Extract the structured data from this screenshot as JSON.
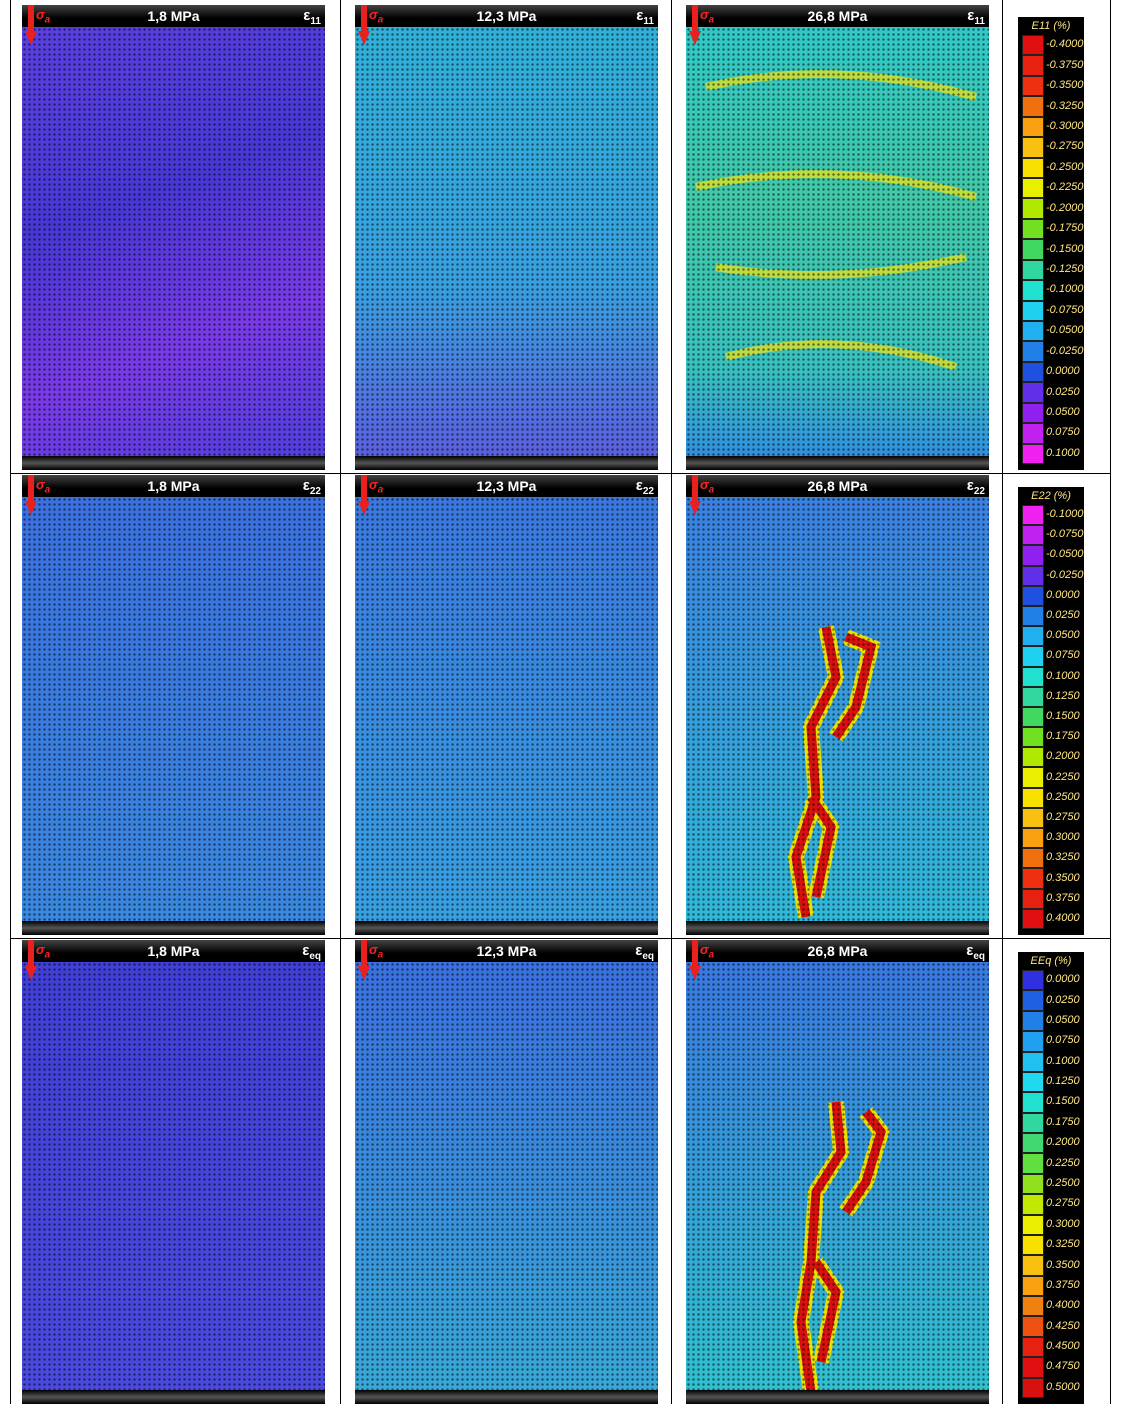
{
  "load_symbol": {
    "symbol": "σ",
    "subscript": "a"
  },
  "rows": [
    {
      "strain": {
        "symbol": "ε",
        "subscript": "11"
      },
      "panels": [
        {
          "stress": "1,8 MPa"
        },
        {
          "stress": "12,3 MPa"
        },
        {
          "stress": "26,8 MPa"
        }
      ],
      "colorbar": {
        "title": "E11 (%)",
        "labels": [
          "-0.4000",
          "-0.3750",
          "-0.3500",
          "-0.3250",
          "-0.3000",
          "-0.2750",
          "-0.2500",
          "-0.2250",
          "-0.2000",
          "-0.1750",
          "-0.1500",
          "-0.1250",
          "-0.1000",
          "-0.0750",
          "-0.0500",
          "-0.0250",
          "0.0000",
          "0.0250",
          "0.0500",
          "0.0750",
          "0.1000"
        ],
        "colors": [
          "#e01010",
          "#e82010",
          "#ee3010",
          "#f07010",
          "#f8a010",
          "#f8c010",
          "#f8e000",
          "#e8f000",
          "#b0e800",
          "#70e020",
          "#40d860",
          "#30d8a0",
          "#20e0d0",
          "#20d0f0",
          "#20b0f0",
          "#2080e8",
          "#2050e0",
          "#6030e8",
          "#9020f0",
          "#c020f0",
          "#f020f0"
        ]
      }
    },
    {
      "strain": {
        "symbol": "ε",
        "subscript": "22"
      },
      "panels": [
        {
          "stress": "1,8 MPa"
        },
        {
          "stress": "12,3 MPa"
        },
        {
          "stress": "26,8 MPa"
        }
      ],
      "colorbar": {
        "title": "E22 (%)",
        "labels": [
          "-0.1000",
          "-0.0750",
          "-0.0500",
          "-0.0250",
          "0.0000",
          "0.0250",
          "0.0500",
          "0.0750",
          "0.1000",
          "0.1250",
          "0.1500",
          "0.1750",
          "0.2000",
          "0.2250",
          "0.2500",
          "0.2750",
          "0.3000",
          "0.3250",
          "0.3500",
          "0.3750",
          "0.4000"
        ],
        "colors": [
          "#f020f0",
          "#c020f0",
          "#9020f0",
          "#6030e8",
          "#2050e0",
          "#2080e8",
          "#20b0f0",
          "#20d0f0",
          "#20e0d0",
          "#30d8a0",
          "#40d860",
          "#70e020",
          "#b0e800",
          "#e8f000",
          "#f8e000",
          "#f8c010",
          "#f8a010",
          "#f07010",
          "#ee3010",
          "#e82010",
          "#e01010"
        ]
      }
    },
    {
      "strain": {
        "symbol": "ε",
        "subscript": "eq"
      },
      "panels": [
        {
          "stress": "1,8 MPa"
        },
        {
          "stress": "12,3 MPa"
        },
        {
          "stress": "26,8 MPa"
        }
      ],
      "colorbar": {
        "title": "EEq (%)",
        "labels": [
          "0.0000",
          "0.0250",
          "0.0500",
          "0.0750",
          "0.1000",
          "0.1250",
          "0.1500",
          "0.1750",
          "0.2000",
          "0.2250",
          "0.2500",
          "0.2750",
          "0.3000",
          "0.3250",
          "0.3500",
          "0.3750",
          "0.4000",
          "0.4250",
          "0.4500",
          "0.4750",
          "0.5000"
        ],
        "colors": [
          "#3030e0",
          "#2060e0",
          "#2080e8",
          "#20a0f0",
          "#20c0f0",
          "#20d8f0",
          "#20e0d0",
          "#30d8a0",
          "#40d870",
          "#60e040",
          "#90e020",
          "#c0e800",
          "#e8f000",
          "#f8e000",
          "#f8c010",
          "#f8a010",
          "#f08010",
          "#ee5010",
          "#e82010",
          "#e01010",
          "#d81010"
        ]
      }
    }
  ]
}
